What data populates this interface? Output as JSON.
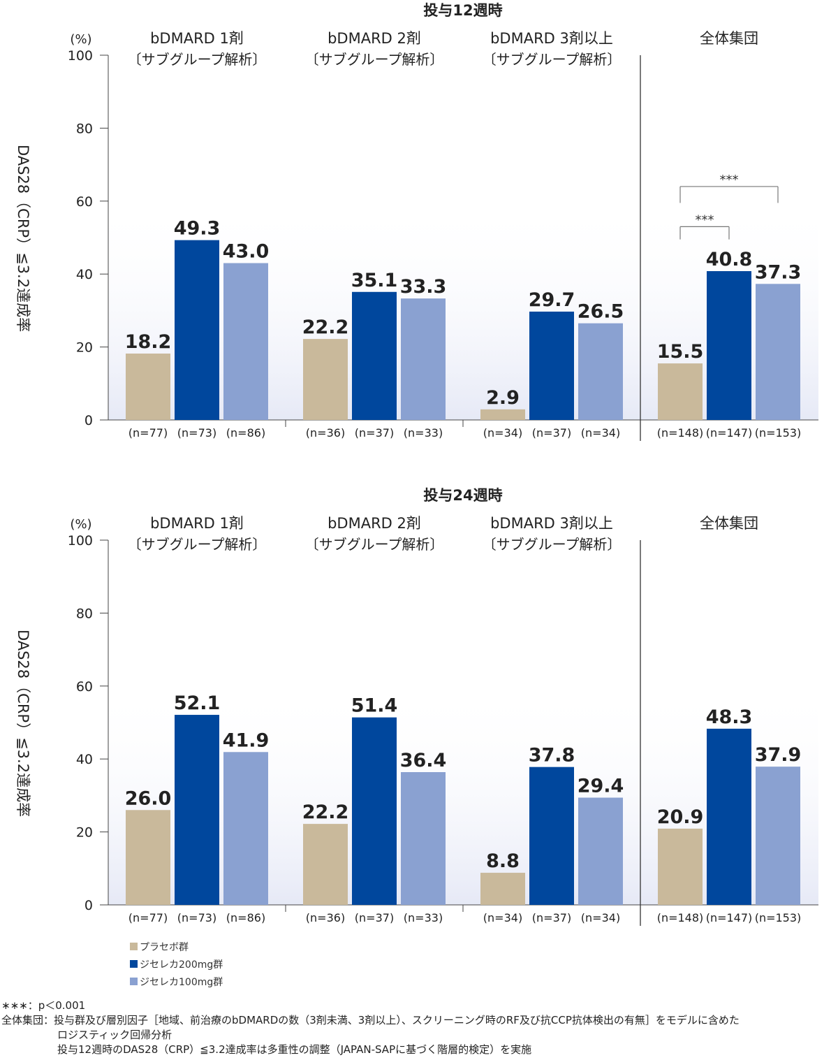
{
  "y_unit": "(%)",
  "chart_data": [
    {
      "type": "bar",
      "title": "投与12週時",
      "ylabel": "DAS28（CRP）≦3.2達成率",
      "ylim": [
        0,
        100
      ],
      "yticks": [
        0,
        20,
        40,
        60,
        80,
        100
      ],
      "groups": [
        {
          "name": "bDMARD 1剤",
          "subtitle": "〔サブグループ解析〕",
          "n": [
            "(n=77)",
            "(n=73)",
            "(n=86)"
          ],
          "values": [
            18.2,
            49.3,
            43.0
          ],
          "labels": [
            "18.2",
            "49.3",
            "43.0"
          ]
        },
        {
          "name": "bDMARD 2剤",
          "subtitle": "〔サブグループ解析〕",
          "n": [
            "(n=36)",
            "(n=37)",
            "(n=33)"
          ],
          "values": [
            22.2,
            35.1,
            33.3
          ],
          "labels": [
            "22.2",
            "35.1",
            "33.3"
          ]
        },
        {
          "name": "bDMARD 3剤以上",
          "subtitle": "〔サブグループ解析〕",
          "n": [
            "(n=34)",
            "(n=37)",
            "(n=34)"
          ],
          "values": [
            2.9,
            29.7,
            26.5
          ],
          "labels": [
            "2.9",
            "29.7",
            "26.5"
          ]
        },
        {
          "name": "全体集団",
          "subtitle": "",
          "n": [
            "(n=148)",
            "(n=147)",
            "(n=153)"
          ],
          "values": [
            15.5,
            40.8,
            37.3
          ],
          "labels": [
            "15.5",
            "40.8",
            "37.3"
          ]
        }
      ],
      "significance": [
        {
          "group": 3,
          "from": 0,
          "to": 1,
          "label": "***"
        },
        {
          "group": 3,
          "from": 0,
          "to": 2,
          "label": "***"
        }
      ]
    },
    {
      "type": "bar",
      "title": "投与24週時",
      "ylabel": "DAS28（CRP）≦3.2達成率",
      "ylim": [
        0,
        100
      ],
      "yticks": [
        0,
        20,
        40,
        60,
        80,
        100
      ],
      "groups": [
        {
          "name": "bDMARD 1剤",
          "subtitle": "〔サブグループ解析〕",
          "n": [
            "(n=77)",
            "(n=73)",
            "(n=86)"
          ],
          "values": [
            26.0,
            52.1,
            41.9
          ],
          "labels": [
            "26.0",
            "52.1",
            "41.9"
          ]
        },
        {
          "name": "bDMARD 2剤",
          "subtitle": "〔サブグループ解析〕",
          "n": [
            "(n=36)",
            "(n=37)",
            "(n=33)"
          ],
          "values": [
            22.2,
            51.4,
            36.4
          ],
          "labels": [
            "22.2",
            "51.4",
            "36.4"
          ]
        },
        {
          "name": "bDMARD 3剤以上",
          "subtitle": "〔サブグループ解析〕",
          "n": [
            "(n=34)",
            "(n=37)",
            "(n=34)"
          ],
          "values": [
            8.8,
            37.8,
            29.4
          ],
          "labels": [
            "8.8",
            "37.8",
            "29.4"
          ]
        },
        {
          "name": "全体集団",
          "subtitle": "",
          "n": [
            "(n=148)",
            "(n=147)",
            "(n=153)"
          ],
          "values": [
            20.9,
            48.3,
            37.9
          ],
          "labels": [
            "20.9",
            "48.3",
            "37.9"
          ]
        }
      ],
      "significance": []
    }
  ],
  "legend": [
    {
      "label": "プラセボ群",
      "color": "#c9b99b"
    },
    {
      "label": "ジセレカ200mg群",
      "color": "#00479d"
    },
    {
      "label": "ジセレカ100mg群",
      "color": "#8aa1d1"
    }
  ],
  "notes": {
    "sig_label": "∗∗∗",
    "sig_text": "：p＜0.001",
    "pop_label": "全体集団",
    "pop_text": "：投与群及び層別因子［地域、前治療のbDMARDの数（3剤未満、3剤以上）、スクリーニング時のRF及び抗CCP抗体検出の有無］をモデルに含めた",
    "pop_text2": "ロジスティック回帰分析",
    "pop_text3": "投与12週時のDAS28（CRP）≦3.2達成率は多重性の調整（JAPAN-SAPに基づく階層的検定）を実施"
  }
}
